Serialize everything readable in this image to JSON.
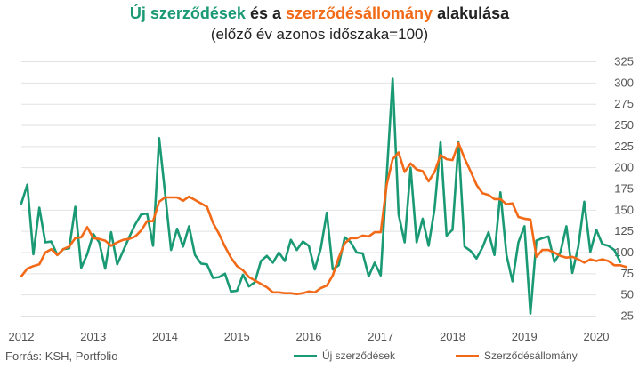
{
  "title_parts": [
    {
      "text": "Új szerződések",
      "color": "#1a9a74"
    },
    {
      "text": " és a ",
      "color": "#222222"
    },
    {
      "text": "szerződésállomány",
      "color": "#f26a18"
    },
    {
      "text": " alakulása",
      "color": "#222222"
    }
  ],
  "subtitle": "(előző év azonos időszaka=100)",
  "source": "Forrás: KSH, Portfolio",
  "chart_data": {
    "type": "line",
    "title": "Új szerződések és a szerződésállomány alakulása",
    "subtitle": "(előző év azonos időszaka=100)",
    "x_start": "2012-01",
    "x_step": "month",
    "x_ticks": [
      "2012",
      "2013",
      "2014",
      "2015",
      "2016",
      "2017",
      "2018",
      "2019",
      "2020"
    ],
    "y_ticks": [
      25,
      50,
      75,
      100,
      125,
      150,
      175,
      200,
      225,
      250,
      275,
      300,
      325
    ],
    "ylim": [
      15,
      335
    ],
    "grid": "horizontal",
    "legend_position": "bottom-right",
    "series": [
      {
        "name": "Új szerződések",
        "color": "#1a9a74",
        "values": [
          158,
          180,
          98,
          153,
          112,
          113,
          97,
          104,
          105,
          154,
          82,
          98,
          122,
          112,
          81,
          124,
          86,
          102,
          118,
          133,
          145,
          146,
          108,
          235,
          170,
          103,
          128,
          107,
          131,
          97,
          87,
          86,
          70,
          71,
          75,
          54,
          55,
          74,
          60,
          65,
          90,
          96,
          88,
          100,
          90,
          115,
          103,
          113,
          108,
          80,
          105,
          147,
          80,
          85,
          118,
          112,
          100,
          99,
          72,
          88,
          73,
          190,
          305,
          145,
          112,
          200,
          112,
          140,
          108,
          152,
          230,
          120,
          127,
          230,
          107,
          102,
          93,
          106,
          124,
          97,
          171,
          97,
          66,
          112,
          131,
          28,
          114,
          117,
          119,
          89,
          100,
          131,
          76,
          107,
          160,
          101,
          127,
          110,
          108,
          103,
          89
        ]
      },
      {
        "name": "Szerződésállomány",
        "color": "#f26a18",
        "values": [
          72,
          81,
          84,
          86,
          100,
          104,
          97,
          104,
          107,
          117,
          118,
          130,
          117,
          116,
          114,
          108,
          112,
          115,
          116,
          119,
          126,
          137,
          137,
          160,
          165,
          165,
          165,
          161,
          166,
          162,
          158,
          154,
          135,
          122,
          107,
          94,
          84,
          79,
          71,
          67,
          63,
          59,
          53,
          53,
          52,
          52,
          51,
          52,
          54,
          53,
          58,
          61,
          73,
          94,
          111,
          117,
          117,
          120,
          119,
          124,
          124,
          180,
          210,
          218,
          195,
          205,
          198,
          196,
          184,
          195,
          215,
          210,
          209,
          229,
          211,
          196,
          180,
          170,
          168,
          163,
          163,
          157,
          158,
          142,
          140,
          139,
          95,
          103,
          103,
          100,
          96,
          94,
          95,
          92,
          88,
          92,
          90,
          92,
          90,
          85,
          85,
          83
        ]
      }
    ]
  }
}
